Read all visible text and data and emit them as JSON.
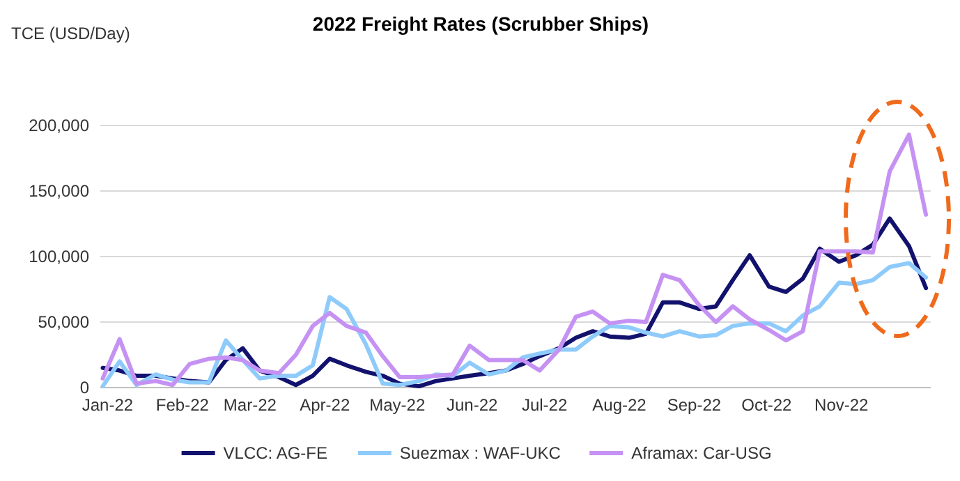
{
  "chart_data": {
    "type": "line",
    "title": "2022 Freight Rates (Scrubber Ships)",
    "ylabel": "TCE (USD/Day)",
    "x": [
      "2021-12-30",
      "2022-01-06",
      "2022-01-13",
      "2022-01-21",
      "2022-01-28",
      "2022-02-04",
      "2022-02-12",
      "2022-02-19",
      "2022-02-26",
      "2022-03-05",
      "2022-03-13",
      "2022-03-20",
      "2022-03-27",
      "2022-04-03",
      "2022-04-10",
      "2022-04-18",
      "2022-04-25",
      "2022-05-02",
      "2022-05-10",
      "2022-05-17",
      "2022-05-24",
      "2022-05-31",
      "2022-06-08",
      "2022-06-15",
      "2022-06-22",
      "2022-06-29",
      "2022-07-07",
      "2022-07-14",
      "2022-07-21",
      "2022-07-28",
      "2022-08-05",
      "2022-08-12",
      "2022-08-19",
      "2022-08-26",
      "2022-09-03",
      "2022-09-10",
      "2022-09-17",
      "2022-09-24",
      "2022-10-02",
      "2022-10-09",
      "2022-10-16",
      "2022-10-23",
      "2022-10-31",
      "2022-11-07",
      "2022-11-14",
      "2022-11-21",
      "2022-11-29",
      "2022-12-06"
    ],
    "xlim": [
      "2021-12-29",
      "2022-12-08"
    ],
    "xticks": [
      {
        "value": "2022-01-01",
        "label": "Jan-22"
      },
      {
        "value": "2022-02-01",
        "label": "Feb-22"
      },
      {
        "value": "2022-03-01",
        "label": "Mar-22"
      },
      {
        "value": "2022-04-01",
        "label": "Apr-22"
      },
      {
        "value": "2022-05-01",
        "label": "May-22"
      },
      {
        "value": "2022-06-01",
        "label": "Jun-22"
      },
      {
        "value": "2022-07-01",
        "label": "Jul-22"
      },
      {
        "value": "2022-08-01",
        "label": "Aug-22"
      },
      {
        "value": "2022-09-01",
        "label": "Sep-22"
      },
      {
        "value": "2022-10-01",
        "label": "Oct-22"
      },
      {
        "value": "2022-11-01",
        "label": "Nov-22"
      }
    ],
    "ylim": [
      0,
      200000
    ],
    "yticks": [
      {
        "value": 0,
        "label": "0"
      },
      {
        "value": 50000,
        "label": "50,000"
      },
      {
        "value": 100000,
        "label": "100,000"
      },
      {
        "value": 150000,
        "label": "150,000"
      },
      {
        "value": 200000,
        "label": "200,000"
      }
    ],
    "grid": "y",
    "legend": "bottom",
    "line_style": "solid",
    "marker": "none",
    "series": [
      {
        "name": "VLCC: AG-FE",
        "color": "#12126e",
        "values": [
          15000,
          13000,
          9000,
          9000,
          7000,
          5000,
          4000,
          21000,
          30000,
          13000,
          8000,
          2000,
          9000,
          22000,
          17000,
          12000,
          9000,
          3000,
          1000,
          5000,
          7000,
          9000,
          11000,
          13000,
          18000,
          24000,
          30000,
          38000,
          43000,
          39000,
          38000,
          41000,
          65000,
          65000,
          60000,
          62000,
          82000,
          101000,
          77000,
          73000,
          83000,
          106000,
          96000,
          101000,
          109000,
          129000,
          108000,
          76000
        ]
      },
      {
        "name": "Suezmax : WAF-UKC",
        "color": "#8ecbfb",
        "values": [
          1000,
          20000,
          2000,
          10000,
          6000,
          4000,
          4000,
          36000,
          21000,
          7000,
          9000,
          9000,
          17000,
          69000,
          60000,
          33000,
          3000,
          2000,
          5000,
          10000,
          9000,
          19000,
          10000,
          13000,
          23000,
          26000,
          29000,
          29000,
          39000,
          47000,
          46000,
          42000,
          39000,
          43000,
          39000,
          40000,
          47000,
          49000,
          49000,
          43000,
          55000,
          62000,
          80000,
          79000,
          82000,
          92000,
          95000,
          84000
        ]
      },
      {
        "name": "Aframax: Car-USG",
        "color": "#c592f3",
        "values": [
          7000,
          37000,
          3000,
          5000,
          2000,
          18000,
          22000,
          23000,
          21000,
          13000,
          11000,
          25000,
          47000,
          57000,
          47000,
          42000,
          24000,
          8000,
          8000,
          9000,
          10000,
          32000,
          21000,
          21000,
          21000,
          13000,
          29000,
          54000,
          58000,
          49000,
          51000,
          50000,
          86000,
          82000,
          63000,
          50000,
          62000,
          52000,
          44000,
          36000,
          43000,
          104000,
          104000,
          104000,
          103000,
          165000,
          193000,
          132000
        ]
      }
    ]
  }
}
